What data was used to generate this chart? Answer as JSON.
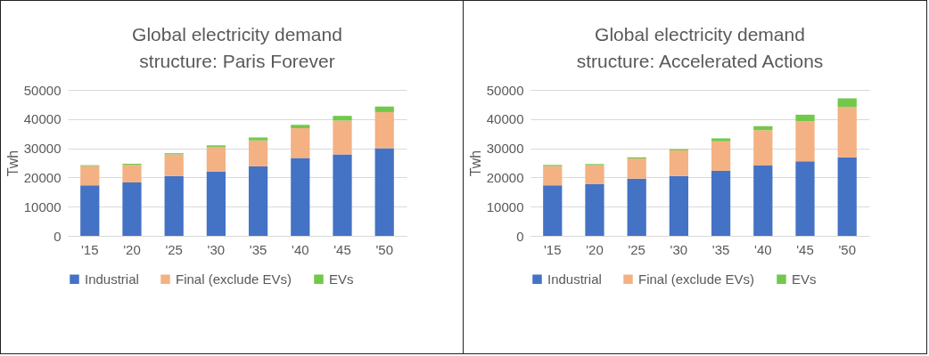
{
  "chart_data": [
    {
      "type": "bar",
      "title": "Global electricity demand structure: Paris Forever",
      "ylabel": "Twh",
      "categories": [
        "'15",
        "'20",
        "'25",
        "'30",
        "'35",
        "'40",
        "'45",
        "'50"
      ],
      "stacked": true,
      "ylim": [
        0,
        50000
      ],
      "yticks": [
        0,
        10000,
        20000,
        30000,
        40000,
        50000
      ],
      "grid": "y",
      "legend": "bottom",
      "series": [
        {
          "name": "Industrial",
          "color": "#4472c4",
          "values": [
            17300,
            18300,
            20500,
            22000,
            23800,
            26700,
            27900,
            30000
          ]
        },
        {
          "name": "Final (exclude EVs)",
          "color": "#f4b183",
          "values": [
            6600,
            6000,
            7400,
            8500,
            8900,
            10200,
            11600,
            12400
          ]
        },
        {
          "name": "EVs",
          "color": "#72c84a",
          "values": [
            300,
            400,
            400,
            500,
            1000,
            1100,
            1600,
            1900
          ]
        }
      ]
    },
    {
      "type": "bar",
      "title": "Global electricity demand structure: Accelerated Actions",
      "ylabel": "Twh",
      "categories": [
        "'15",
        "'20",
        "'25",
        "'30",
        "'35",
        "'40",
        "'45",
        "'50"
      ],
      "stacked": true,
      "ylim": [
        0,
        50000
      ],
      "yticks": [
        0,
        10000,
        20000,
        30000,
        40000,
        50000
      ],
      "grid": "y",
      "legend": "bottom",
      "series": [
        {
          "name": "Industrial",
          "color": "#4472c4",
          "values": [
            17300,
            17700,
            19600,
            20500,
            22300,
            24100,
            25500,
            26900
          ]
        },
        {
          "name": "Final (exclude EVs)",
          "color": "#f4b183",
          "values": [
            6600,
            6500,
            6900,
            8800,
            10100,
            12100,
            13700,
            17300
          ]
        },
        {
          "name": "EVs",
          "color": "#72c84a",
          "values": [
            400,
            400,
            400,
            400,
            1000,
            1400,
            2300,
            2900
          ]
        }
      ]
    }
  ]
}
